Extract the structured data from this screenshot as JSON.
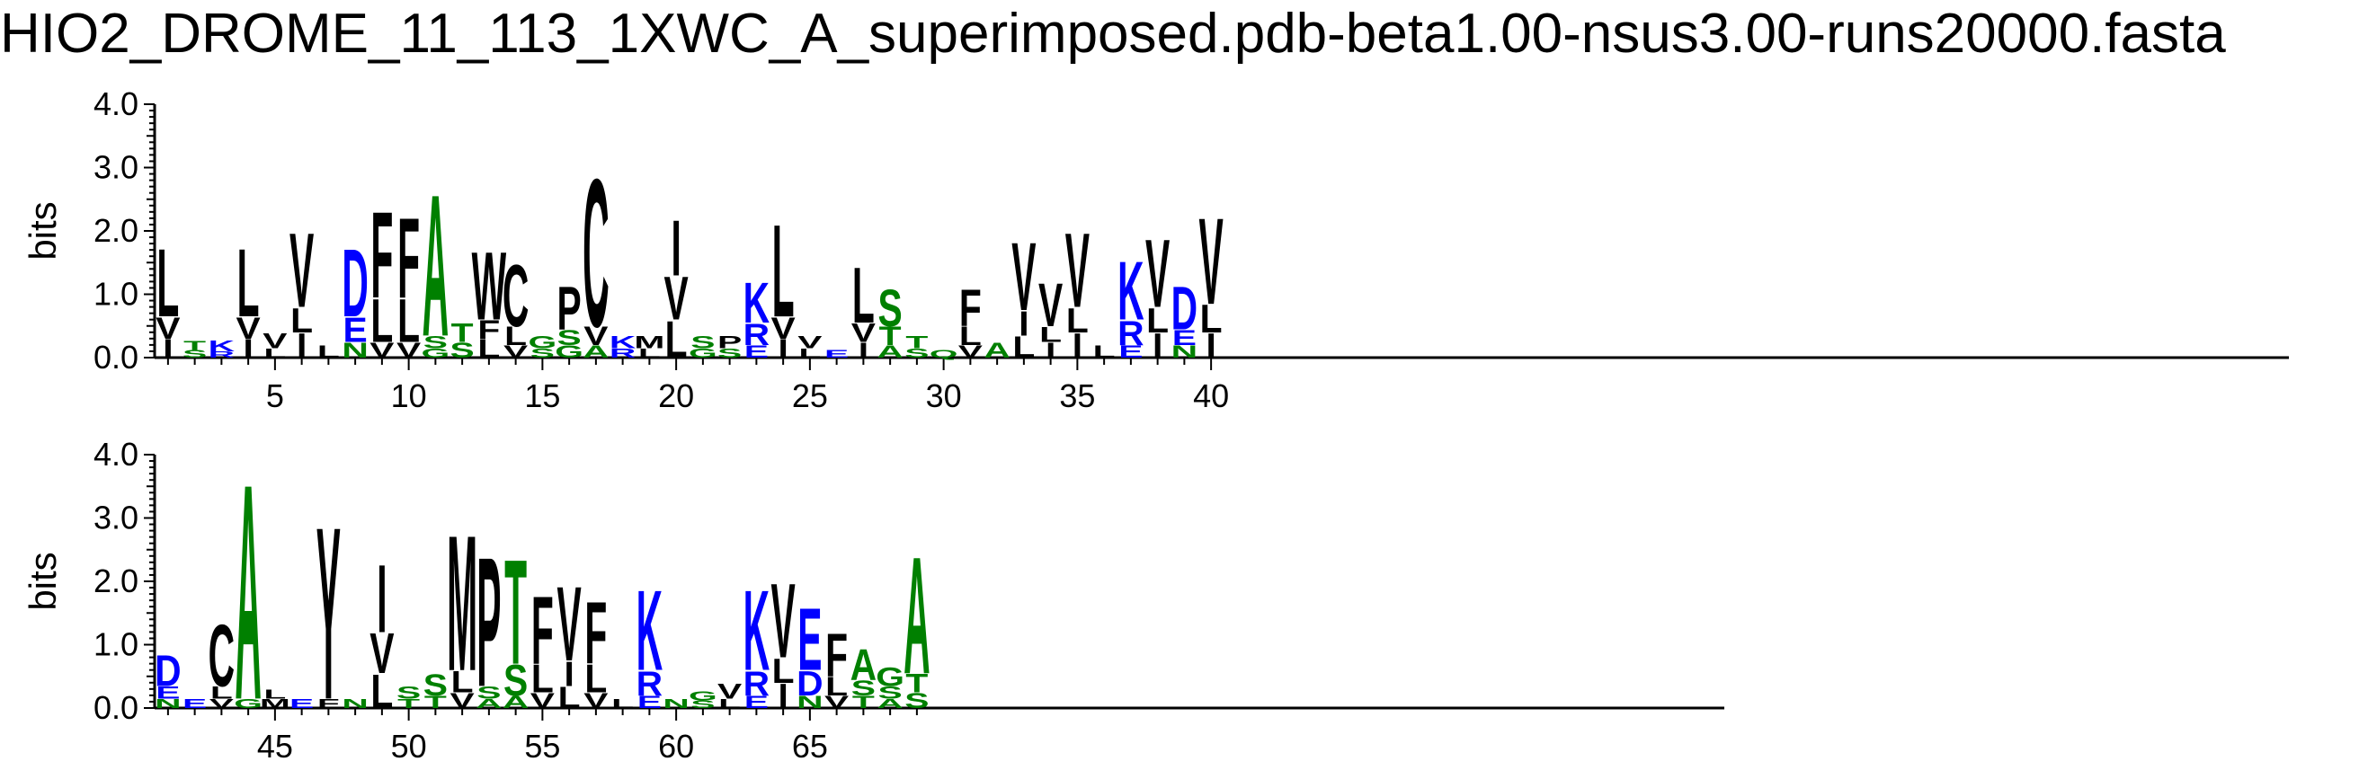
{
  "colors": {
    "hydrophobic": "#000000",
    "basic": "#0000ff",
    "acidic": "#0000ff",
    "polar": "#008000",
    "axis": "#000000"
  },
  "chart_data": {
    "type": "sequence-logo",
    "title": "HIO2_DROME_11_113_1XWC_A_superimposed.pdb-beta1.00-nsus3.00-runs20000.fasta",
    "ylabel": "bits",
    "ylim": [
      0,
      4.0
    ],
    "yticks": [
      "0.0",
      "1.0",
      "2.0",
      "3.0",
      "4.0"
    ],
    "panels": [
      {
        "xrange": [
          1,
          40
        ],
        "xticks": [
          5,
          10,
          15,
          20,
          25,
          30,
          35,
          40
        ],
        "positions": [
          {
            "pos": 1,
            "letters": [
              [
                "L",
                1.1
              ],
              [
                "V",
                0.35
              ],
              [
                "I",
                0.3
              ]
            ]
          },
          {
            "pos": 2,
            "letters": [
              [
                "T",
                0.15
              ],
              [
                "S",
                0.12
              ]
            ]
          },
          {
            "pos": 3,
            "letters": [
              [
                "K",
                0.18
              ],
              [
                "R",
                0.1
              ]
            ]
          },
          {
            "pos": 4,
            "letters": [
              [
                "L",
                1.1
              ],
              [
                "V",
                0.35
              ],
              [
                "I",
                0.3
              ]
            ]
          },
          {
            "pos": 5,
            "letters": [
              [
                "V",
                0.25
              ],
              [
                "L",
                0.15
              ]
            ]
          },
          {
            "pos": 6,
            "letters": [
              [
                "V",
                1.2
              ],
              [
                "I",
                0.4
              ],
              [
                "L",
                0.4
              ]
            ]
          },
          {
            "pos": 7,
            "letters": [
              [
                "L",
                0.2
              ]
            ]
          },
          {
            "pos": 8,
            "letters": [
              [
                "D",
                1.1
              ],
              [
                "E",
                0.4
              ],
              [
                "N",
                0.25
              ]
            ]
          },
          {
            "pos": 9,
            "letters": [
              [
                "F",
                1.4
              ],
              [
                "L",
                0.7
              ],
              [
                "V",
                0.25
              ]
            ]
          },
          {
            "pos": 10,
            "letters": [
              [
                "F",
                1.3
              ],
              [
                "L",
                0.7
              ],
              [
                "V",
                0.25
              ]
            ]
          },
          {
            "pos": 11,
            "letters": [
              [
                "A",
                2.3
              ],
              [
                "S",
                0.2
              ],
              [
                "G",
                0.15
              ]
            ]
          },
          {
            "pos": 12,
            "letters": [
              [
                "T",
                0.3
              ],
              [
                "S",
                0.25
              ]
            ]
          },
          {
            "pos": 13,
            "letters": [
              [
                "W",
                1.1
              ],
              [
                "L",
                0.3
              ],
              [
                "F",
                0.3
              ]
            ]
          },
          {
            "pos": 14,
            "letters": [
              [
                "C",
                1.0
              ],
              [
                "L",
                0.3
              ],
              [
                "V",
                0.2
              ]
            ]
          },
          {
            "pos": 15,
            "letters": [
              [
                "G",
                0.2
              ],
              [
                "S",
                0.15
              ]
            ]
          },
          {
            "pos": 16,
            "letters": [
              [
                "P",
                0.7
              ],
              [
                "S",
                0.25
              ],
              [
                "G",
                0.2
              ]
            ]
          },
          {
            "pos": 17,
            "letters": [
              [
                "C",
                2.4
              ],
              [
                "V",
                0.3
              ],
              [
                "A",
                0.2
              ]
            ]
          },
          {
            "pos": 18,
            "letters": [
              [
                "K",
                0.2
              ],
              [
                "R",
                0.15
              ]
            ]
          },
          {
            "pos": 19,
            "letters": [
              [
                "M",
                0.2
              ],
              [
                "L",
                0.15
              ]
            ]
          },
          {
            "pos": 20,
            "letters": [
              [
                "I",
                0.9
              ],
              [
                "V",
                0.7
              ],
              [
                "L",
                0.6
              ]
            ]
          },
          {
            "pos": 21,
            "letters": [
              [
                "S",
                0.2
              ],
              [
                "G",
                0.15
              ]
            ]
          },
          {
            "pos": 22,
            "letters": [
              [
                "P",
                0.2
              ],
              [
                "S",
                0.15
              ]
            ]
          },
          {
            "pos": 23,
            "letters": [
              [
                "K",
                0.65
              ],
              [
                "R",
                0.35
              ],
              [
                "E",
                0.2
              ]
            ]
          },
          {
            "pos": 24,
            "letters": [
              [
                "L",
                1.5
              ],
              [
                "V",
                0.35
              ],
              [
                "I",
                0.3
              ]
            ]
          },
          {
            "pos": 25,
            "letters": [
              [
                "V",
                0.2
              ],
              [
                "L",
                0.15
              ]
            ]
          },
          {
            "pos": 26,
            "letters": [
              [
                "E",
                0.12
              ]
            ]
          },
          {
            "pos": 27,
            "letters": [
              [
                "L",
                0.9
              ],
              [
                "V",
                0.3
              ],
              [
                "I",
                0.25
              ]
            ]
          },
          {
            "pos": 28,
            "letters": [
              [
                "S",
                0.6
              ],
              [
                "T",
                0.3
              ],
              [
                "A",
                0.2
              ]
            ]
          },
          {
            "pos": 29,
            "letters": [
              [
                "T",
                0.2
              ],
              [
                "S",
                0.15
              ]
            ]
          },
          {
            "pos": 30,
            "letters": [
              [
                "Q",
                0.12
              ]
            ]
          },
          {
            "pos": 31,
            "letters": [
              [
                "F",
                0.6
              ],
              [
                "L",
                0.3
              ],
              [
                "V",
                0.2
              ]
            ]
          },
          {
            "pos": 32,
            "letters": [
              [
                "A",
                0.25
              ]
            ]
          },
          {
            "pos": 33,
            "letters": [
              [
                "V",
                1.1
              ],
              [
                "I",
                0.4
              ],
              [
                "L",
                0.35
              ]
            ]
          },
          {
            "pos": 34,
            "letters": [
              [
                "V",
                0.7
              ],
              [
                "I",
                0.25
              ],
              [
                "L",
                0.25
              ]
            ]
          },
          {
            "pos": 35,
            "letters": [
              [
                "V",
                1.2
              ],
              [
                "I",
                0.4
              ],
              [
                "L",
                0.4
              ]
            ]
          },
          {
            "pos": 36,
            "letters": [
              [
                "L",
                0.2
              ]
            ]
          },
          {
            "pos": 37,
            "letters": [
              [
                "K",
                0.95
              ],
              [
                "R",
                0.4
              ],
              [
                "E",
                0.2
              ]
            ]
          },
          {
            "pos": 38,
            "letters": [
              [
                "V",
                1.1
              ],
              [
                "I",
                0.4
              ],
              [
                "L",
                0.4
              ]
            ]
          },
          {
            "pos": 39,
            "letters": [
              [
                "D",
                0.7
              ],
              [
                "E",
                0.25
              ],
              [
                "N",
                0.2
              ]
            ]
          },
          {
            "pos": 40,
            "letters": [
              [
                "V",
                1.4
              ],
              [
                "I",
                0.4
              ],
              [
                "L",
                0.45
              ]
            ]
          }
        ]
      },
      {
        "xrange": [
          41,
          69
        ],
        "xticks": [
          45,
          50,
          55,
          60,
          65
        ],
        "positions": [
          {
            "pos": 41,
            "letters": [
              [
                "D",
                0.5
              ],
              [
                "E",
                0.2
              ],
              [
                "N",
                0.15
              ]
            ]
          },
          {
            "pos": 42,
            "letters": [
              [
                "E",
                0.15
              ]
            ]
          },
          {
            "pos": 43,
            "letters": [
              [
                "C",
                1.0
              ],
              [
                "L",
                0.2
              ],
              [
                "V",
                0.15
              ]
            ]
          },
          {
            "pos": 44,
            "letters": [
              [
                "A",
                3.5
              ],
              [
                "G",
                0.15
              ]
            ]
          },
          {
            "pos": 45,
            "letters": [
              [
                "M",
                0.15
              ],
              [
                "L",
                0.15
              ]
            ]
          },
          {
            "pos": 46,
            "letters": [
              [
                "E",
                0.15
              ]
            ]
          },
          {
            "pos": 47,
            "letters": [
              [
                "Y",
                2.8
              ],
              [
                "F",
                0.15
              ]
            ]
          },
          {
            "pos": 48,
            "letters": [
              [
                "N",
                0.15
              ]
            ]
          },
          {
            "pos": 49,
            "letters": [
              [
                "I",
                1.1
              ],
              [
                "V",
                0.65
              ],
              [
                "L",
                0.55
              ]
            ]
          },
          {
            "pos": 50,
            "letters": [
              [
                "S",
                0.2
              ],
              [
                "T",
                0.15
              ]
            ]
          },
          {
            "pos": 51,
            "letters": [
              [
                "S",
                0.35
              ],
              [
                "T",
                0.2
              ]
            ]
          },
          {
            "pos": 52,
            "letters": [
              [
                "M",
                2.2
              ],
              [
                "L",
                0.35
              ],
              [
                "V",
                0.25
              ]
            ]
          },
          {
            "pos": 53,
            "letters": [
              [
                "P",
                2.1
              ],
              [
                "S",
                0.2
              ],
              [
                "A",
                0.15
              ]
            ]
          },
          {
            "pos": 54,
            "letters": [
              [
                "T",
                1.7
              ],
              [
                "S",
                0.5
              ],
              [
                "A",
                0.2
              ]
            ]
          },
          {
            "pos": 55,
            "letters": [
              [
                "F",
                1.1
              ],
              [
                "L",
                0.45
              ],
              [
                "V",
                0.25
              ]
            ]
          },
          {
            "pos": 56,
            "letters": [
              [
                "V",
                1.2
              ],
              [
                "I",
                0.4
              ],
              [
                "L",
                0.35
              ]
            ]
          },
          {
            "pos": 57,
            "letters": [
              [
                "F",
                1.0
              ],
              [
                "L",
                0.45
              ],
              [
                "V",
                0.25
              ]
            ]
          },
          {
            "pos": 58,
            "letters": [
              [
                "L",
                0.15
              ]
            ]
          },
          {
            "pos": 59,
            "letters": [
              [
                "K",
                1.3
              ],
              [
                "R",
                0.4
              ],
              [
                "E",
                0.2
              ]
            ]
          },
          {
            "pos": 60,
            "letters": [
              [
                "N",
                0.15
              ]
            ]
          },
          {
            "pos": 61,
            "letters": [
              [
                "G",
                0.15
              ],
              [
                "S",
                0.12
              ]
            ]
          },
          {
            "pos": 62,
            "letters": [
              [
                "V",
                0.25
              ],
              [
                "L",
                0.15
              ]
            ]
          },
          {
            "pos": 63,
            "letters": [
              [
                "K",
                1.3
              ],
              [
                "R",
                0.4
              ],
              [
                "E",
                0.2
              ]
            ]
          },
          {
            "pos": 64,
            "letters": [
              [
                "V",
                1.2
              ],
              [
                "I",
                0.4
              ],
              [
                "L",
                0.4
              ]
            ]
          },
          {
            "pos": 65,
            "letters": [
              [
                "E",
                1.0
              ],
              [
                "D",
                0.4
              ],
              [
                "N",
                0.2
              ]
            ]
          },
          {
            "pos": 66,
            "letters": [
              [
                "F",
                0.7
              ],
              [
                "L",
                0.3
              ],
              [
                "V",
                0.2
              ]
            ]
          },
          {
            "pos": 67,
            "letters": [
              [
                "A",
                0.5
              ],
              [
                "S",
                0.25
              ],
              [
                "T",
                0.2
              ]
            ]
          },
          {
            "pos": 68,
            "letters": [
              [
                "G",
                0.3
              ],
              [
                "S",
                0.2
              ],
              [
                "A",
                0.15
              ]
            ]
          },
          {
            "pos": 69,
            "letters": [
              [
                "A",
                1.9
              ],
              [
                "T",
                0.3
              ],
              [
                "S",
                0.25
              ]
            ]
          }
        ]
      }
    ]
  }
}
